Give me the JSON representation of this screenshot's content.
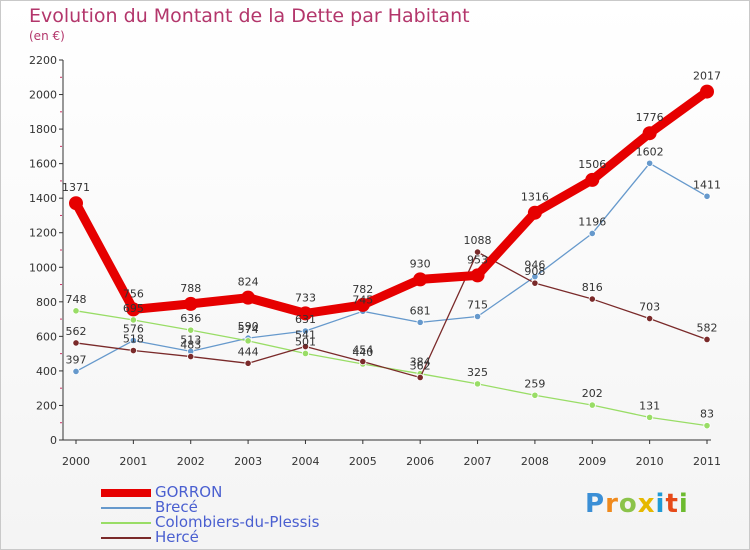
{
  "title": "Evolution du Montant de la Dette par Habitant",
  "unit": "(en €)",
  "logo": "Proxiti",
  "chart_data": {
    "type": "line",
    "x": [
      "2000",
      "2001",
      "2002",
      "2003",
      "2004",
      "2005",
      "2006",
      "2007",
      "2008",
      "2009",
      "2010",
      "2011"
    ],
    "ylim": [
      0,
      2200
    ],
    "yticks": [
      0,
      200,
      400,
      600,
      800,
      1000,
      1200,
      1400,
      1600,
      1800,
      2000,
      2200
    ],
    "grid": false,
    "legend_position": "bottom-left",
    "series": [
      {
        "name": "GORRON",
        "color": "#e60000",
        "values": [
          1371,
          756,
          788,
          824,
          733,
          782,
          930,
          953,
          1316,
          1506,
          1776,
          2017
        ],
        "labels": [
          "1371",
          "756",
          "788",
          "824",
          "733",
          "782",
          "930",
          "953",
          "1316",
          "1506",
          "1776",
          "2017"
        ]
      },
      {
        "name": "Brecé",
        "color": "#6699cc",
        "values": [
          397,
          576,
          513,
          590,
          631,
          745,
          681,
          715,
          946,
          1196,
          1602,
          1411
        ],
        "labels": [
          "397",
          "576",
          "513",
          "590",
          "631",
          "745",
          "681",
          "715",
          "946",
          "1196",
          "1602",
          "1411"
        ]
      },
      {
        "name": "Colombiers-du-Plessis",
        "color": "#99dd66",
        "values": [
          748,
          695,
          636,
          574,
          501,
          440,
          384,
          325,
          259,
          202,
          131,
          83
        ],
        "labels": [
          "748",
          "695",
          "636",
          "574",
          "501",
          "440",
          "384",
          "325",
          "259",
          "202",
          "131",
          "83"
        ]
      },
      {
        "name": "Hercé",
        "color": "#7a2a2a",
        "values": [
          562,
          518,
          483,
          444,
          541,
          454,
          362,
          1088,
          908,
          816,
          703,
          582
        ],
        "labels": [
          "562",
          "518",
          "483",
          "444",
          "541",
          "454",
          "362",
          "1088",
          "908",
          "816",
          "703",
          "582"
        ]
      }
    ]
  }
}
